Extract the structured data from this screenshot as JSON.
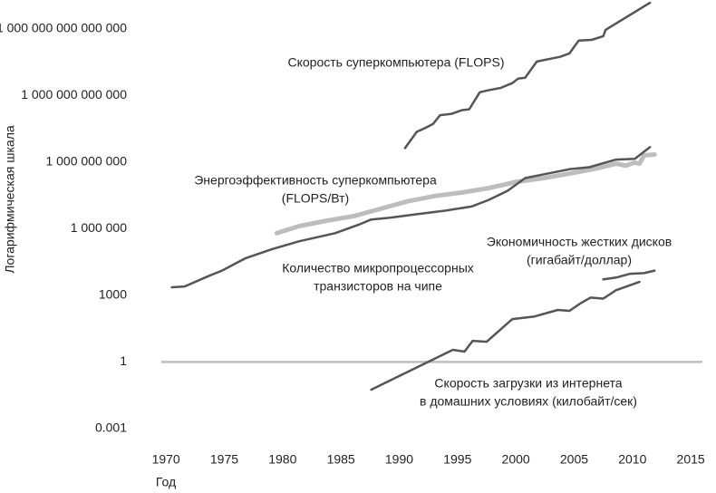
{
  "chart_data": {
    "type": "line",
    "log_scale": true,
    "xlabel": "Год",
    "ylabel": "Логарифмическая шкала",
    "xlim": [
      1969.6,
      2016
    ],
    "xticks": [
      1970,
      1975,
      1980,
      1985,
      1990,
      1995,
      2000,
      2005,
      2010,
      2015
    ],
    "ylim": [
      0.0002,
      2e+16
    ],
    "yticks": [
      0.001,
      1,
      1000,
      {
        "value": 1000000,
        "label": "1 000 000"
      },
      {
        "value": 1000000000,
        "label": "1 000 000 000"
      },
      {
        "value": 1000000000000,
        "label": "1 000 000 000 000"
      },
      {
        "value": 1000000000000000,
        "label": "1 000 000 000 000 000"
      }
    ],
    "reference_line": 1,
    "reference_color": "#bdbdbd",
    "annotations": [
      [
        "Скорость суперкомпьютера (FLOPS)"
      ],
      [
        "Энергоэффективность суперкомпьютера",
        "(FLOPS/Вт)"
      ],
      [
        "Экономичность жестких дисков",
        "(гигабайт/доллар)"
      ],
      [
        "Количество микропроцессорных",
        "транзисторов на чипе"
      ],
      [
        "Скорость загрузки из интернета",
        "в домашних условиях (килобайт/сек)"
      ]
    ],
    "series": [
      {
        "color": "#555555",
        "width": 2.5,
        "x": [
          1990.5,
          1991.5,
          1992.3,
          1992.9,
          1993.5,
          1994.5,
          1995.4,
          1996,
          1996.9,
          1997.6,
          1998.7,
          1999.7,
          2000.2,
          2000.8,
          2001.8,
          2003.8,
          2004.6,
          2005.4,
          2006.5,
          2007.5,
          2007.7,
          2011.5
        ],
        "values": [
          4300000000.0,
          23000000000.0,
          36000000000.0,
          52000000000.0,
          130000000000.0,
          150000000000.0,
          220000000000.0,
          240000000000.0,
          1400000000000.0,
          1700000000000.0,
          2200000000000.0,
          3600000000000.0,
          5800000000000.0,
          6300000000000.0,
          34000000000000.0,
          55000000000000.0,
          79000000000000.0,
          300000000000000.0,
          320000000000000.0,
          470000000000000.0,
          910000000000000.0,
          1.5e+16
        ]
      },
      {
        "color": "#bdbdbd",
        "width": 5,
        "x": [
          1979.5,
          1981.4,
          1983.8,
          1986.1,
          1988.4,
          1990.7,
          1993.1,
          1995.4,
          1997.7,
          2000.1,
          2002.4,
          2004.7,
          2007.1,
          2008.6,
          2009.4,
          2010.2,
          2010.6,
          2011,
          2011.9
        ],
        "values": [
          630000.0,
          1300000.0,
          2300000.0,
          3700000.0,
          7900000.0,
          17000000.0,
          30000000.0,
          43000000.0,
          68000000.0,
          130000000.0,
          190000000.0,
          310000000.0,
          540000000.0,
          850000000.0,
          700000000.0,
          940000000.0,
          850000000.0,
          2000000000.0,
          2200000000.0
        ]
      },
      {
        "color": "#555555",
        "width": 2.5,
        "x": [
          1970.5,
          1971.6,
          1973.7,
          1974.8,
          1976.8,
          1979.1,
          1981.4,
          1984.5,
          1986.5,
          1987.6,
          1989.2,
          1991.5,
          1993.9,
          1996.2,
          1997.7,
          1999.3,
          2000.8,
          2002.8,
          2004.7,
          2006.3,
          2008.6,
          2010.2,
          2011.5
        ],
        "values": [
          2300,
          2500,
          7600,
          13000,
          46000,
          120000,
          270000,
          630000,
          1500000,
          2600000,
          3100000,
          4500000,
          6500000,
          10000000.0,
          20000000.0,
          51000000.0,
          190000000.0,
          310000000.0,
          490000000.0,
          590000000.0,
          1300000000.0,
          1400000000.0,
          4700000000.0
        ]
      },
      {
        "color": "#555555",
        "width": 2.5,
        "x": [
          1987.6,
          1994.6,
          1995.6,
          1996.3,
          1997.5,
          1999.7,
          2001.6,
          2003.6,
          2004.6,
          2005.5,
          2006.4,
          2007.5,
          2008.6,
          2010.6
        ],
        "values": [
          0.056,
          3.5,
          2.9,
          8.9,
          8.1,
          85,
          112,
          220,
          200,
          420,
          790,
          710,
          1700,
          4000
        ]
      },
      {
        "color": "#555555",
        "width": 2.5,
        "x": [
          2007.5,
          2008.6,
          2009.8,
          2011,
          2011.9
        ],
        "values": [
          5200,
          6300,
          9300,
          10000,
          13000
        ]
      }
    ]
  }
}
